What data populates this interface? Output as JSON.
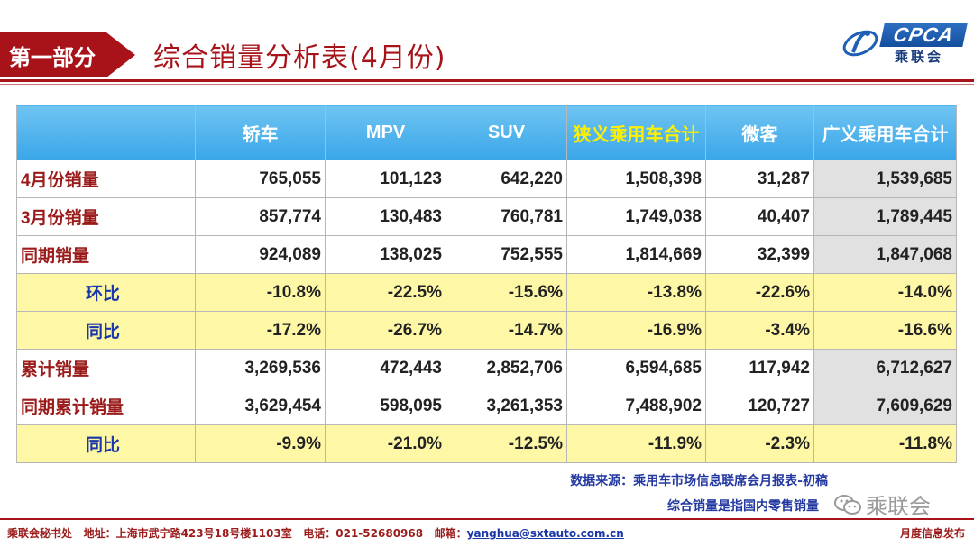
{
  "header": {
    "section": "第一部分",
    "title": "综合销量分析表(4月份)",
    "logo_brand": "CPCA",
    "logo_cn": "乘联会"
  },
  "table": {
    "columns": [
      "",
      "轿车",
      "MPV",
      "SUV",
      "狭义乘用车合计",
      "微客",
      "广义乘用车合计"
    ],
    "rows": [
      {
        "label": "4月份销量",
        "values": [
          "765,055",
          "101,123",
          "642,220",
          "1,508,398",
          "31,287",
          "1,539,685"
        ]
      },
      {
        "label": "3月份销量",
        "values": [
          "857,774",
          "130,483",
          "760,781",
          "1,749,038",
          "40,407",
          "1,789,445"
        ]
      },
      {
        "label": "同期销量",
        "values": [
          "924,089",
          "138,025",
          "752,555",
          "1,814,669",
          "32,399",
          "1,847,068"
        ]
      },
      {
        "label": "环比",
        "values": [
          "-10.8%",
          "-22.5%",
          "-15.6%",
          "-13.8%",
          "-22.6%",
          "-14.0%"
        ]
      },
      {
        "label": "同比",
        "values": [
          "-17.2%",
          "-26.7%",
          "-14.7%",
          "-16.9%",
          "-3.4%",
          "-16.6%"
        ]
      },
      {
        "label": "累计销量",
        "values": [
          "3,269,536",
          "472,443",
          "2,852,706",
          "6,594,685",
          "117,942",
          "6,712,627"
        ]
      },
      {
        "label": "同期累计销量",
        "values": [
          "3,629,454",
          "598,095",
          "3,261,353",
          "7,488,902",
          "120,727",
          "7,609,629"
        ]
      },
      {
        "label": "同比",
        "values": [
          "-9.9%",
          "-21.0%",
          "-12.5%",
          "-11.9%",
          "-2.3%",
          "-11.8%"
        ]
      }
    ]
  },
  "notes": {
    "source": "数据来源：乘用车市场信息联席会月报表-初稿",
    "definition": "综合销量是指国内零售销量"
  },
  "watermark": "乘联会",
  "footer": {
    "office": "乘联会秘书处",
    "address": "地址：上海市武宁路423号18号楼1103室",
    "phone": "电话：021-52680968",
    "email_label": "邮箱：",
    "email": "yanghua@sxtauto.com.cn",
    "right": "月度信息发布"
  },
  "colors": {
    "brand_red": "#a8131a",
    "header_blue": "#3aa6e8",
    "highlight_yellow": "#fdf7a6",
    "header_text_yellow": "#fff000"
  }
}
